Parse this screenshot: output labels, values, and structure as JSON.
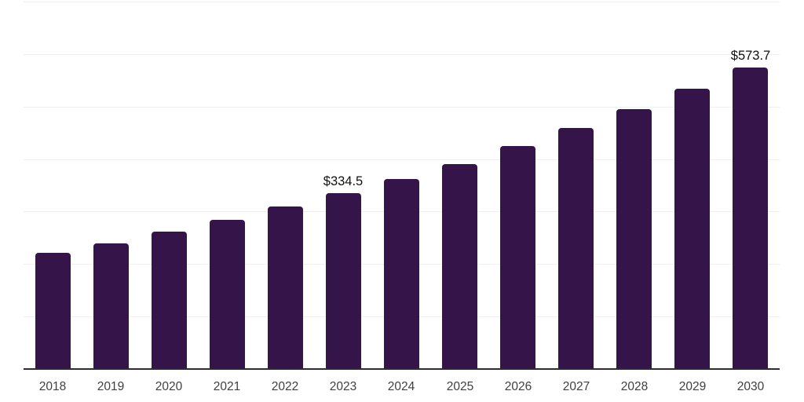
{
  "chart_data": {
    "type": "bar",
    "title": "",
    "xlabel": "",
    "ylabel": "",
    "categories": [
      "2018",
      "2019",
      "2020",
      "2021",
      "2022",
      "2023",
      "2024",
      "2025",
      "2026",
      "2027",
      "2028",
      "2029",
      "2030"
    ],
    "values": [
      221,
      240,
      262,
      284,
      309,
      334.5,
      362,
      391,
      425,
      459,
      495,
      534,
      573.7
    ],
    "data_labels": {
      "2023": "$334.5",
      "2030": "$573.7"
    },
    "currency_prefix": "$",
    "ylim": [
      0,
      700
    ],
    "gridline_step": 100,
    "grid": "horizontal-only",
    "legend": "none",
    "colors": {
      "bar": "#351449",
      "gridline": "#f0f0f0",
      "axis_line": "#2d2d2d",
      "tick_label": "#404040",
      "data_label": "#111111",
      "background": "#ffffff"
    }
  }
}
